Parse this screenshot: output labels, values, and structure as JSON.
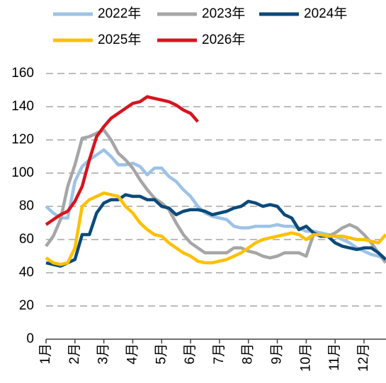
{
  "chart_data": {
    "type": "line",
    "x": [
      1,
      1.25,
      1.5,
      1.75,
      2,
      2.25,
      2.5,
      2.75,
      3,
      3.25,
      3.5,
      3.75,
      4,
      4.25,
      4.5,
      4.75,
      5,
      5.25,
      5.5,
      5.75,
      6,
      6.25,
      6.5,
      6.75,
      7,
      7.25,
      7.5,
      7.75,
      8,
      8.25,
      8.5,
      8.75,
      9,
      9.25,
      9.5,
      9.75,
      10,
      10.25,
      10.5,
      10.75,
      11,
      11.25,
      11.5,
      11.75,
      12,
      12.25,
      12.5,
      12.75
    ],
    "series": [
      {
        "name": "2022年",
        "color": "#9dc3e6",
        "values": [
          80,
          76,
          73,
          73,
          95,
          104,
          108,
          111,
          114,
          110,
          105,
          105,
          106,
          104,
          99,
          103,
          103,
          98,
          95,
          90,
          86,
          80,
          76,
          74,
          73,
          72,
          68,
          67,
          67,
          68,
          68,
          68,
          69,
          68,
          68,
          67,
          65,
          65,
          64,
          63,
          62,
          60,
          58,
          55,
          53,
          51,
          50,
          48
        ]
      },
      {
        "name": "2023年",
        "color": "#a6a6a6",
        "values": [
          56,
          62,
          72,
          92,
          105,
          121,
          122,
          124,
          126,
          120,
          112,
          108,
          103,
          96,
          90,
          85,
          82,
          78,
          70,
          63,
          58,
          55,
          52,
          52,
          52,
          52,
          55,
          55,
          53,
          52,
          50,
          49,
          50,
          52,
          52,
          52,
          50,
          63,
          63,
          62,
          64,
          67,
          69,
          67,
          63,
          58,
          52,
          46
        ]
      },
      {
        "name": "2024年",
        "color": "#0b4a7a",
        "values": [
          46,
          45,
          44,
          46,
          48,
          63,
          63,
          76,
          82,
          84,
          84,
          87,
          86,
          86,
          84,
          84,
          80,
          79,
          75,
          77,
          78,
          78,
          77,
          75,
          76,
          77,
          79,
          80,
          83,
          82,
          80,
          81,
          80,
          75,
          73,
          66,
          68,
          64,
          62,
          62,
          58,
          56,
          55,
          54,
          55,
          55,
          52,
          48
        ]
      },
      {
        "name": "2025年",
        "color": "#ffc000",
        "values": [
          49,
          46,
          45,
          46,
          55,
          80,
          84,
          86,
          88,
          87,
          86,
          80,
          76,
          70,
          66,
          63,
          62,
          58,
          55,
          52,
          50,
          47,
          46,
          46,
          47,
          48,
          50,
          52,
          55,
          58,
          60,
          61,
          62,
          63,
          64,
          63,
          60,
          63,
          63,
          62,
          62,
          62,
          61,
          60,
          60,
          59,
          58,
          63
        ]
      },
      {
        "name": "2026年",
        "color": "#d7141f",
        "values": [
          69,
          72,
          75,
          77,
          83,
          92,
          108,
          122,
          128,
          133,
          136,
          139,
          142,
          143,
          146,
          145,
          144,
          143,
          141,
          138,
          136,
          131,
          null,
          null,
          null,
          null,
          null,
          null,
          null,
          null,
          null,
          null,
          null,
          null,
          null,
          null,
          null,
          null,
          null,
          null,
          null,
          null,
          null,
          null,
          null,
          null,
          null,
          null
        ]
      }
    ],
    "xlim": [
      1,
      12.76
    ],
    "xticks": [
      {
        "value": 1,
        "label": "1月"
      },
      {
        "value": 2,
        "label": "2月"
      },
      {
        "value": 3,
        "label": "3月"
      },
      {
        "value": 4,
        "label": "4月"
      },
      {
        "value": 5,
        "label": "5月"
      },
      {
        "value": 6,
        "label": "6月"
      },
      {
        "value": 7,
        "label": "7月"
      },
      {
        "value": 8,
        "label": "8月"
      },
      {
        "value": 9,
        "label": "9月"
      },
      {
        "value": 10,
        "label": "10月"
      },
      {
        "value": 11,
        "label": "11月"
      },
      {
        "value": 12,
        "label": "12月"
      }
    ],
    "ylim": [
      0,
      160
    ],
    "yticks": [
      0,
      20,
      40,
      60,
      80,
      100,
      120,
      140,
      160
    ],
    "grid": true
  }
}
